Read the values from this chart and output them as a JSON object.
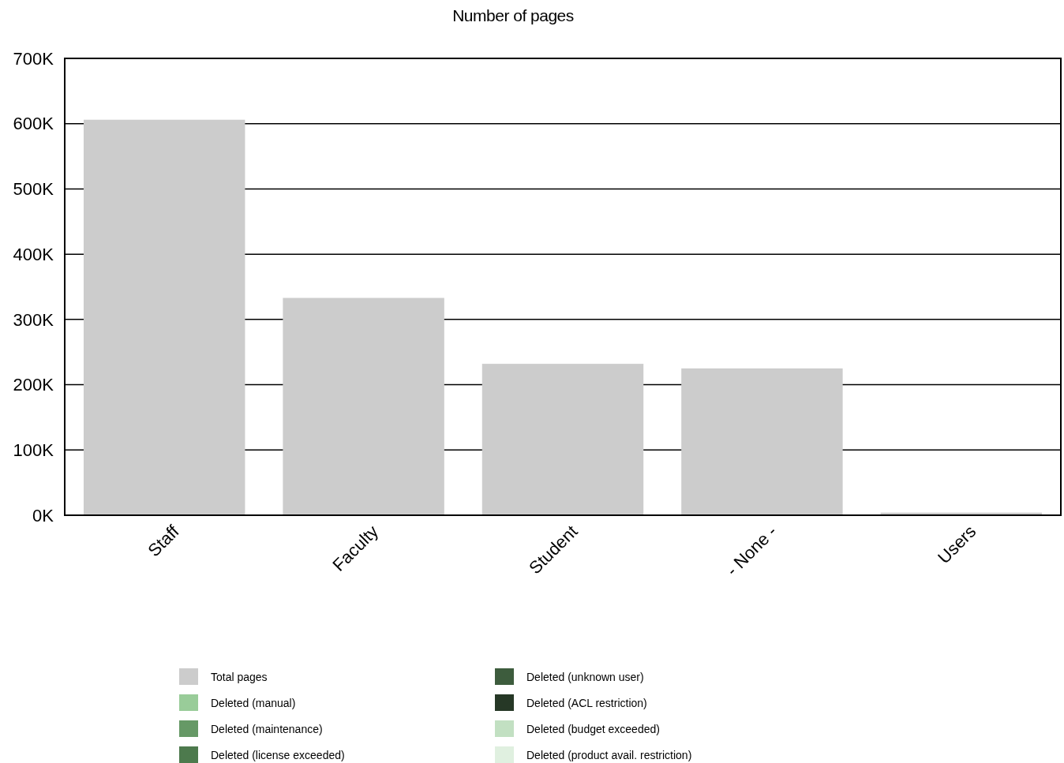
{
  "chart_data": {
    "type": "bar",
    "title": "Number of pages",
    "stacked": true,
    "legend": "bottom",
    "grid": "y",
    "categories": [
      "Staff",
      "Faculty",
      "Student",
      "- None -",
      "Users"
    ],
    "ylim": [
      0,
      700000
    ],
    "yticks": [
      {
        "value": 0,
        "label": "0K"
      },
      {
        "value": 100000,
        "label": "100K"
      },
      {
        "value": 200000,
        "label": "200K"
      },
      {
        "value": 300000,
        "label": "300K"
      },
      {
        "value": 400000,
        "label": "400K"
      },
      {
        "value": 500000,
        "label": "500K"
      },
      {
        "value": 600000,
        "label": "600K"
      },
      {
        "value": 700000,
        "label": "700K"
      }
    ],
    "series": [
      {
        "name": "Total pages",
        "color": "#cccccc",
        "values": [
          606000,
          333000,
          232000,
          225000,
          4000
        ]
      },
      {
        "name": "Deleted (manual)",
        "color": "#99cc99",
        "values": [
          0,
          0,
          0,
          0,
          0
        ]
      },
      {
        "name": "Deleted (maintenance)",
        "color": "#669966",
        "values": [
          0,
          0,
          0,
          0,
          0
        ]
      },
      {
        "name": "Deleted (license exceeded)",
        "color": "#4d7a4d",
        "values": [
          0,
          0,
          0,
          0,
          0
        ]
      },
      {
        "name": "Deleted (unknown user)",
        "color": "#3d5c3d",
        "values": [
          0,
          0,
          0,
          0,
          0
        ]
      },
      {
        "name": "Deleted (ACL restriction)",
        "color": "#263826",
        "values": [
          0,
          0,
          0,
          0,
          0
        ]
      },
      {
        "name": "Deleted (budget exceeded)",
        "color": "#c2e0c2",
        "values": [
          0,
          0,
          0,
          0,
          0
        ]
      },
      {
        "name": "Deleted (product avail. restriction)",
        "color": "#e0f0e0",
        "values": [
          0,
          0,
          0,
          0,
          0
        ]
      }
    ]
  }
}
